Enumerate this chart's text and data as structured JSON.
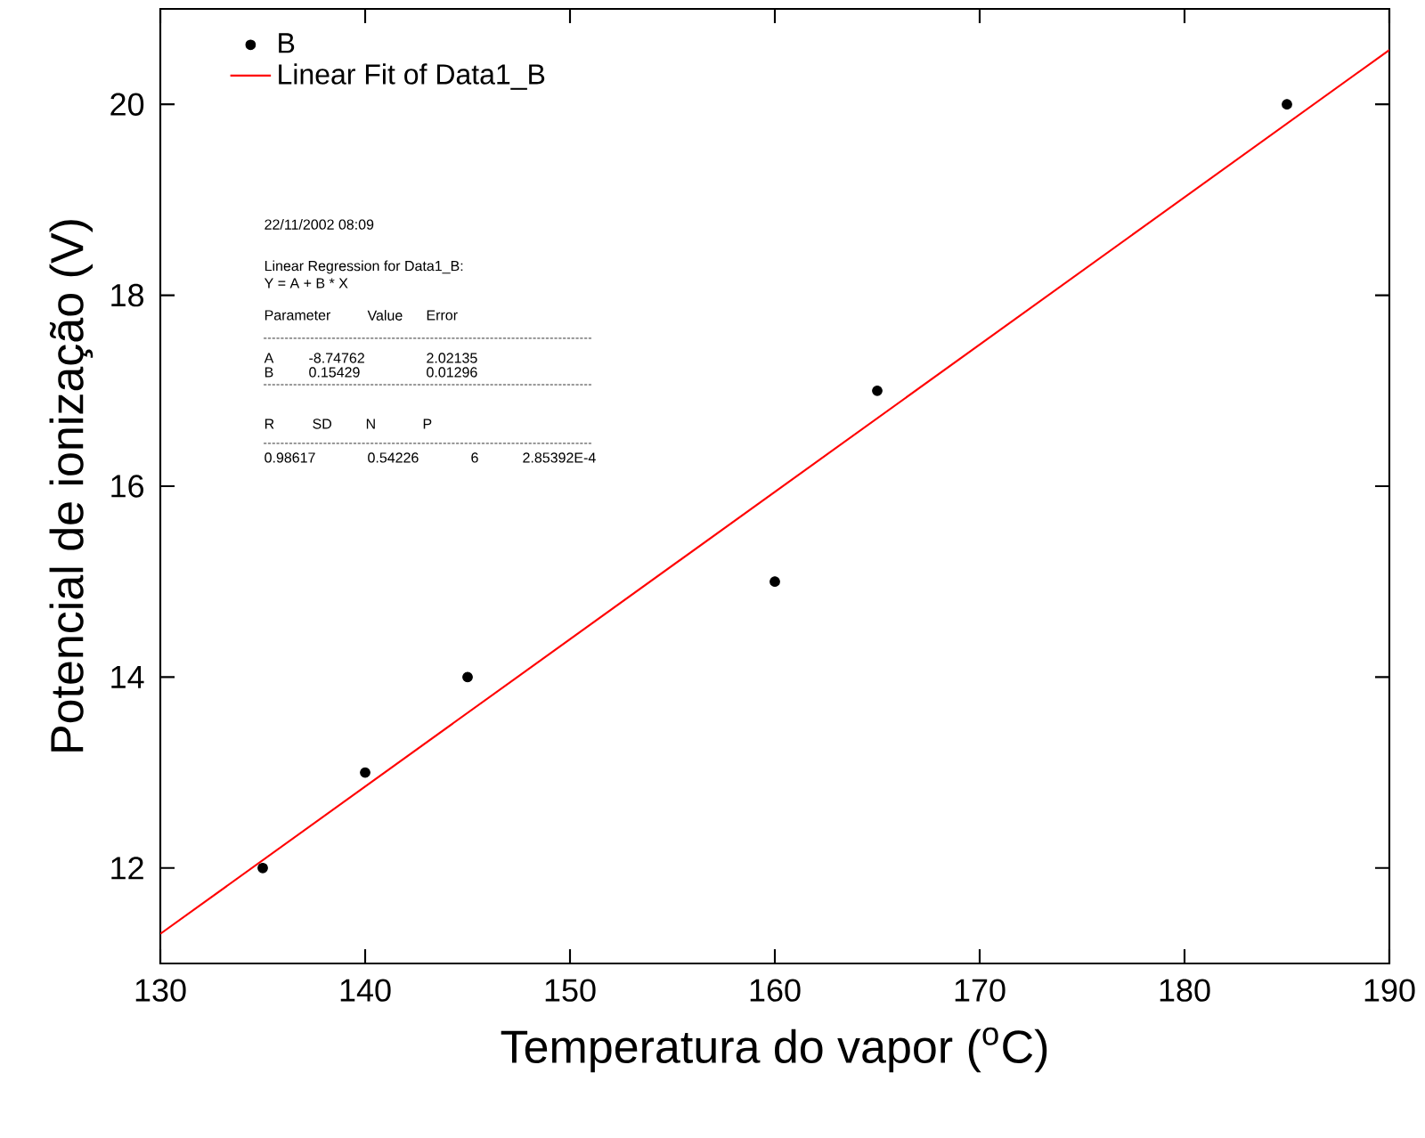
{
  "chart_data": {
    "type": "scatter",
    "xlabel": "Temperatura do vapor ($^{o}$C)",
    "ylabel": "Potencial de ionização (V)",
    "xlim": [
      130,
      190
    ],
    "ylim": [
      11,
      21
    ],
    "xticks": [
      130,
      140,
      150,
      160,
      170,
      180,
      190
    ],
    "yticks": [
      12,
      14,
      16,
      18,
      20
    ],
    "grid": false,
    "legend": "top left",
    "series": [
      {
        "name": "B",
        "marker": "circle",
        "color": "#000000",
        "x": [
          135,
          140,
          145,
          160,
          165,
          185
        ],
        "values": [
          12,
          13,
          14,
          15,
          17,
          20
        ]
      },
      {
        "name": "Linear Fit of Data1_B",
        "type": "line",
        "marker": "none",
        "line_style": "solid",
        "color": "#ff0000",
        "x": [
          130,
          190
        ],
        "values": [
          11.31,
          20.57
        ]
      }
    ],
    "annotations": [
      "22/11/2002 08:09",
      "Linear Regression for Data1_B:",
      "Y = A + B * X",
      "Parameter",
      "Value",
      "Error",
      "A",
      "-8.74762",
      "2.02135",
      "B",
      "0.15429",
      "0.01296",
      "R",
      "SD",
      "N",
      "P",
      "0.98617",
      "0.54226",
      "6",
      "2.85392E-4"
    ]
  }
}
